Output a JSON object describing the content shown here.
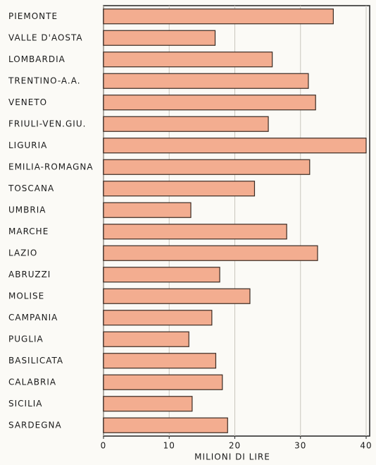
{
  "chart_data": {
    "type": "bar",
    "orientation": "horizontal",
    "categories": [
      "PIEMONTE",
      "VALLE D'AOSTA",
      "LOMBARDIA",
      "TRENTINO-A.A.",
      "VENETO",
      "FRIULI-VEN.GIU.",
      "LIGURIA",
      "EMILIA-ROMAGNA",
      "TOSCANA",
      "UMBRIA",
      "MARCHE",
      "LAZIO",
      "ABRUZZI",
      "MOLISE",
      "CAMPANIA",
      "PUGLIA",
      "BASILICATA",
      "CALABRIA",
      "SICILIA",
      "SARDEGNA"
    ],
    "values": [
      35,
      17,
      25.7,
      31.2,
      32.3,
      25.1,
      40,
      31.4,
      23,
      13.3,
      27.9,
      32.6,
      17.7,
      22.3,
      16.5,
      13,
      17.1,
      18.1,
      13.5,
      18.9
    ],
    "color": "#f3ad90",
    "xlim": [
      0,
      40
    ],
    "xticks": [
      0,
      10,
      20,
      30,
      40
    ],
    "xlabel": "MILIONI DI LIRE",
    "grid": true
  }
}
